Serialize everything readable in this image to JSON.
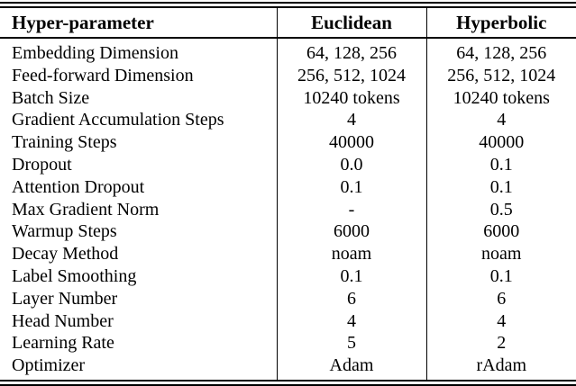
{
  "table": {
    "header": [
      "Hyper-parameter",
      "Euclidean",
      "Hyperbolic"
    ],
    "rows": [
      [
        "Embedding Dimension",
        "64, 128, 256",
        "64, 128, 256"
      ],
      [
        "Feed-forward Dimension",
        "256, 512, 1024",
        "256, 512, 1024"
      ],
      [
        "Batch Size",
        "10240 tokens",
        "10240 tokens"
      ],
      [
        "Gradient Accumulation Steps",
        "4",
        "4"
      ],
      [
        "Training Steps",
        "40000",
        "40000"
      ],
      [
        "Dropout",
        "0.0",
        "0.1"
      ],
      [
        "Attention Dropout",
        "0.1",
        "0.1"
      ],
      [
        "Max Gradient Norm",
        "-",
        "0.5"
      ],
      [
        "Warmup Steps",
        "6000",
        "6000"
      ],
      [
        "Decay Method",
        "noam",
        "noam"
      ],
      [
        "Label Smoothing",
        "0.1",
        "0.1"
      ],
      [
        "Layer Number",
        "6",
        "6"
      ],
      [
        "Head Number",
        "4",
        "4"
      ],
      [
        "Learning Rate",
        "5",
        "2"
      ],
      [
        "Optimizer",
        "Adam",
        "rAdam"
      ]
    ],
    "colors": {
      "text": "#000000",
      "background": "#ffffff",
      "rule": "#000000"
    }
  }
}
